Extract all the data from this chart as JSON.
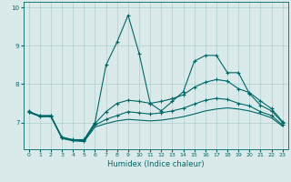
{
  "bg_color": "#daeaea",
  "grid_color": "#b0cccc",
  "line_color": "#006666",
  "xlabel": "Humidex (Indice chaleur)",
  "xlim": [
    -0.5,
    23.5
  ],
  "ylim": [
    6.3,
    10.15
  ],
  "yticks": [
    7,
    8,
    9,
    10
  ],
  "xticks": [
    0,
    1,
    2,
    3,
    4,
    5,
    6,
    7,
    8,
    9,
    10,
    11,
    12,
    13,
    14,
    15,
    16,
    17,
    18,
    19,
    20,
    21,
    22,
    23
  ],
  "series": [
    {
      "x": [
        0,
        1,
        2,
        3,
        4,
        5,
        6,
        7,
        8,
        9,
        10,
        11,
        12,
        13,
        14,
        15,
        16,
        17,
        18,
        19,
        20,
        21,
        22,
        23
      ],
      "y": [
        7.3,
        7.15,
        7.15,
        6.62,
        6.55,
        6.55,
        7.0,
        8.5,
        9.1,
        9.8,
        8.8,
        7.5,
        7.3,
        7.55,
        7.8,
        8.6,
        8.75,
        8.75,
        8.3,
        8.3,
        7.75,
        7.45,
        7.3,
        7.0
      ],
      "marker": "+"
    },
    {
      "x": [
        0,
        1,
        2,
        3,
        4,
        5,
        6,
        7,
        8,
        9,
        10,
        11,
        12,
        13,
        14,
        15,
        16,
        17,
        18,
        19,
        20,
        21,
        22,
        23
      ],
      "y": [
        7.28,
        7.18,
        7.18,
        6.6,
        6.54,
        6.53,
        6.97,
        7.28,
        7.5,
        7.58,
        7.55,
        7.5,
        7.55,
        7.62,
        7.72,
        7.92,
        8.05,
        8.12,
        8.08,
        7.88,
        7.78,
        7.56,
        7.36,
        7.02
      ],
      "marker": "+"
    },
    {
      "x": [
        0,
        1,
        2,
        3,
        4,
        5,
        6,
        7,
        8,
        9,
        10,
        11,
        12,
        13,
        14,
        15,
        16,
        17,
        18,
        19,
        20,
        21,
        22,
        23
      ],
      "y": [
        7.27,
        7.17,
        7.17,
        6.6,
        6.54,
        6.52,
        6.93,
        7.08,
        7.18,
        7.28,
        7.25,
        7.22,
        7.25,
        7.3,
        7.37,
        7.48,
        7.58,
        7.63,
        7.6,
        7.5,
        7.43,
        7.28,
        7.18,
        6.93
      ],
      "marker": "+"
    },
    {
      "x": [
        0,
        1,
        2,
        3,
        4,
        5,
        6,
        7,
        8,
        9,
        10,
        11,
        12,
        13,
        14,
        15,
        16,
        17,
        18,
        19,
        20,
        21,
        22,
        23
      ],
      "y": [
        7.26,
        7.16,
        7.16,
        6.58,
        6.52,
        6.5,
        6.88,
        6.97,
        7.04,
        7.08,
        7.06,
        7.04,
        7.06,
        7.1,
        7.15,
        7.22,
        7.3,
        7.35,
        7.38,
        7.35,
        7.3,
        7.22,
        7.12,
        6.9
      ],
      "marker": null
    }
  ]
}
